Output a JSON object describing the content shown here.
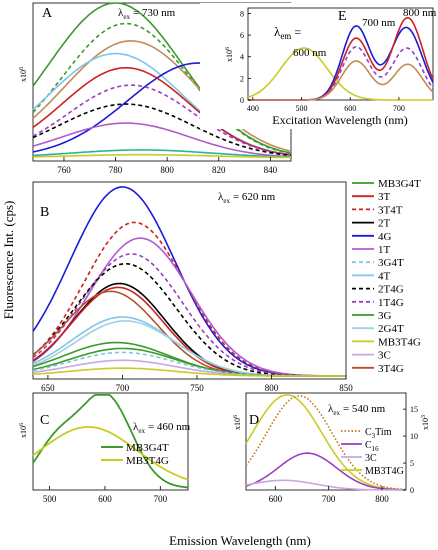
{
  "figure": {
    "y_axis_label": "Fluorescence Int. (cps)",
    "x_axis_label": "Emission Wavelength (nm)"
  },
  "chart_data": [
    {
      "panel": "A",
      "type": "line",
      "annotation": "λex = 730 nm",
      "annotation_main": "λ",
      "annotation_sub": "ex",
      "annotation_value": "= 730 nm",
      "multiplier": "x10^6",
      "x_ticks": [
        "760",
        "780",
        "800",
        "820",
        "840"
      ],
      "xlim": [
        748,
        848
      ],
      "ylim": [
        0,
        1
      ],
      "series": [
        {
          "color": "#3a9a2a",
          "dash": "solid",
          "peak": 780,
          "amp": 0.98,
          "w": 38,
          "base": 0.02
        },
        {
          "color": "#3a9a2a",
          "dash": "dash",
          "peak": 784,
          "amp": 0.85,
          "w": 36,
          "base": 0.02
        },
        {
          "color": "#c48a5a",
          "dash": "solid",
          "peak": 786,
          "amp": 0.74,
          "w": 38,
          "base": 0.02
        },
        {
          "color": "#7ec6e8",
          "dash": "solid",
          "peak": 780,
          "amp": 0.66,
          "w": 38,
          "base": 0.02
        },
        {
          "color": "#1a1adb",
          "dash": "solid",
          "peak": 812,
          "amp": 0.6,
          "w": 40,
          "base": 0.02
        },
        {
          "color": "#cc2222",
          "dash": "solid",
          "peak": 784,
          "amp": 0.57,
          "w": 36,
          "base": 0.02
        },
        {
          "color": "#9a3fbf",
          "dash": "dash",
          "peak": 786,
          "amp": 0.46,
          "w": 36,
          "base": 0.02
        },
        {
          "color": "#000000",
          "dash": "dash",
          "peak": 784,
          "amp": 0.34,
          "w": 38,
          "base": 0.02
        },
        {
          "color": "#b05bd0",
          "dash": "solid",
          "peak": 784,
          "amp": 0.22,
          "w": 36,
          "base": 0.02
        },
        {
          "color": "#2bb0a0",
          "dash": "solid",
          "peak": 790,
          "amp": 0.05,
          "w": 40,
          "base": 0.02
        },
        {
          "color": "#c8cc22",
          "dash": "solid",
          "peak": 790,
          "amp": 0.02,
          "w": 40,
          "base": 0.02
        }
      ]
    },
    {
      "panel": "B",
      "type": "line",
      "annotation": "λex = 620 nm",
      "annotation_main": "λ",
      "annotation_sub": "ex",
      "annotation_value": "= 620 nm",
      "x_ticks": [
        "650",
        "700",
        "750",
        "800",
        "850"
      ],
      "xlim": [
        640,
        850
      ],
      "ylim": [
        0,
        1
      ],
      "legend": [
        {
          "label": "MB3G4T",
          "color": "#3a9a2a",
          "dash": "solid"
        },
        {
          "label": "3T",
          "color": "#cc2222",
          "dash": "solid"
        },
        {
          "label": "3T4T",
          "color": "#cc2222",
          "dash": "dash"
        },
        {
          "label": "2T",
          "color": "#000000",
          "dash": "solid"
        },
        {
          "label": "4G",
          "color": "#1a1adb",
          "dash": "solid"
        },
        {
          "label": "1T",
          "color": "#b05bd0",
          "dash": "solid"
        },
        {
          "label": "3G4T",
          "color": "#7ec6e8",
          "dash": "dash"
        },
        {
          "label": "4T",
          "color": "#7ec6e8",
          "dash": "solid"
        },
        {
          "label": "2T4G",
          "color": "#000000",
          "dash": "dash"
        },
        {
          "label": "1T4G",
          "color": "#9a3fbf",
          "dash": "dash"
        },
        {
          "label": "3G",
          "color": "#3a9a2a",
          "dash": "solid"
        },
        {
          "label": "2G4T",
          "color": "#a0d0e0",
          "dash": "solid"
        },
        {
          "label": "MB3T4G",
          "color": "#c8cc22",
          "dash": "solid"
        },
        {
          "label": "3C",
          "color": "#c8a8e0",
          "dash": "solid"
        },
        {
          "label": "3T4G",
          "color": "#b8502a",
          "dash": "solid"
        }
      ],
      "series": [
        {
          "color": "#1a1adb",
          "dash": "solid",
          "peak": 700,
          "amp": 0.96,
          "w": 52,
          "base": 0.015
        },
        {
          "color": "#cc2222",
          "dash": "dash",
          "peak": 708,
          "amp": 0.78,
          "w": 50,
          "base": 0.015
        },
        {
          "color": "#b05bd0",
          "dash": "solid",
          "peak": 712,
          "amp": 0.7,
          "w": 50,
          "base": 0.015
        },
        {
          "color": "#9a3fbf",
          "dash": "dash",
          "peak": 706,
          "amp": 0.62,
          "w": 50,
          "base": 0.015
        },
        {
          "color": "#000000",
          "dash": "dash",
          "peak": 702,
          "amp": 0.57,
          "w": 50,
          "base": 0.015
        },
        {
          "color": "#000000",
          "dash": "solid",
          "peak": 698,
          "amp": 0.47,
          "w": 45,
          "base": 0.015
        },
        {
          "color": "#cc2222",
          "dash": "solid",
          "peak": 697,
          "amp": 0.45,
          "w": 45,
          "base": 0.015
        },
        {
          "color": "#b8502a",
          "dash": "solid",
          "peak": 692,
          "amp": 0.43,
          "w": 46,
          "base": 0.015
        },
        {
          "color": "#7ec6e8",
          "dash": "solid",
          "peak": 700,
          "amp": 0.3,
          "w": 50,
          "base": 0.015
        },
        {
          "color": "#a0d0e0",
          "dash": "solid",
          "peak": 702,
          "amp": 0.28,
          "w": 50,
          "base": 0.015
        },
        {
          "color": "#3a9a2a",
          "dash": "solid",
          "peak": 696,
          "amp": 0.17,
          "w": 52,
          "base": 0.015
        },
        {
          "color": "#3a9a2a",
          "dash": "solid",
          "peak": 700,
          "amp": 0.14,
          "w": 52,
          "base": 0.015
        },
        {
          "color": "#7ec6e8",
          "dash": "dash",
          "peak": 700,
          "amp": 0.12,
          "w": 52,
          "base": 0.015
        },
        {
          "color": "#c8a8e0",
          "dash": "solid",
          "peak": 700,
          "amp": 0.08,
          "w": 52,
          "base": 0.015
        },
        {
          "color": "#c8cc22",
          "dash": "solid",
          "peak": 700,
          "amp": 0.04,
          "w": 52,
          "base": 0.015
        }
      ]
    },
    {
      "panel": "C",
      "type": "line",
      "annotation": "λex = 460 nm",
      "annotation_main": "λ",
      "annotation_sub": "ex",
      "annotation_value": "= 460 nm",
      "multiplier": "x10^6",
      "x_ticks": [
        "500",
        "600",
        "700"
      ],
      "xlim": [
        470,
        750
      ],
      "ylim": [
        0,
        1
      ],
      "legend": [
        {
          "label": "MB3G4T",
          "color": "#3a9a2a"
        },
        {
          "label": "MB3T4G",
          "color": "#c8cc22"
        }
      ]
    },
    {
      "panel": "D",
      "type": "line",
      "annotation": "λex = 540 nm",
      "annotation_main": "λ",
      "annotation_sub": "ex",
      "annotation_value": "= 540 nm",
      "multiplier_left": "x10^6",
      "multiplier_right": "x10^3",
      "x_ticks": [
        "600",
        "700",
        "800"
      ],
      "xlim": [
        545,
        845
      ],
      "right_ticks": [
        "0",
        "5",
        "10",
        "15"
      ],
      "legend": [
        {
          "label": "C3Tim",
          "label_main": "C",
          "label_sub": "3",
          "label_rest": "Tim",
          "color": "#c8741a",
          "dash": "dot"
        },
        {
          "label": "C16",
          "label_main": "C",
          "label_sub": "16",
          "label_rest": "",
          "color": "#9a3fbf",
          "dash": "solid"
        },
        {
          "label": "3C",
          "label_main": "3C",
          "label_sub": "",
          "label_rest": "",
          "color": "#c8a8e0",
          "dash": "solid"
        },
        {
          "label": "MB3T4G",
          "label_main": "MB3T4G",
          "label_sub": "",
          "label_rest": "",
          "color": "#c8cc22",
          "dash": "solid"
        }
      ]
    },
    {
      "panel": "E",
      "type": "line",
      "x_label": "Excitation Wavelength (nm)",
      "multiplier": "x10^6",
      "x_ticks": [
        "400",
        "500",
        "600",
        "700"
      ],
      "y_ticks": [
        "0",
        "2",
        "4",
        "6",
        "8"
      ],
      "xlim": [
        390,
        770
      ],
      "ylim": [
        0,
        8.5
      ],
      "annotations": [
        "λem =",
        "600 nm",
        "700 nm",
        "800 nm"
      ]
    }
  ]
}
